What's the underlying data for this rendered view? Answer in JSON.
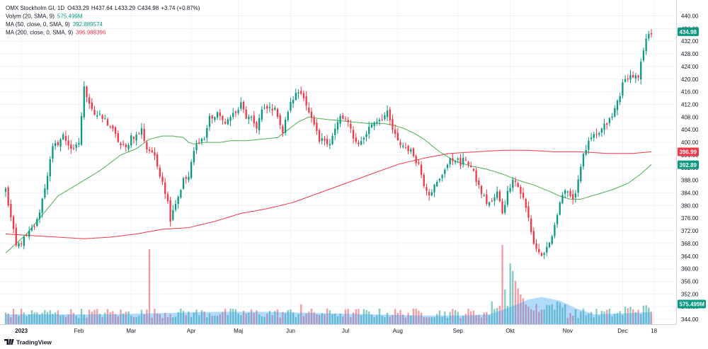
{
  "chart_data": {
    "type": "candlestick",
    "title": "OMX Stockholm GI, 1D",
    "ohlc_header": {
      "open": "O433.29",
      "high": "H437.64",
      "low": "L433.29",
      "close": "C434.98",
      "change": "+3.74 (+0.87%)"
    },
    "indicators": [
      {
        "label": "Volym (20, SMA, 9)",
        "value": "575.499M",
        "color": "#26a69a"
      },
      {
        "label": "MA (50, close, 0, SMA, 9)",
        "value": "392.889574",
        "color": "#089981"
      },
      {
        "label": "MA (200, close, 0, SMA, 9)",
        "value": "396.988396",
        "color": "#f23645"
      }
    ],
    "x_labels": [
      {
        "label": "2023",
        "bold": true,
        "i": 6
      },
      {
        "label": "Feb",
        "i": 28
      },
      {
        "label": "Mar",
        "i": 48
      },
      {
        "label": "Apr",
        "i": 71
      },
      {
        "label": "Maj",
        "i": 89
      },
      {
        "label": "Jun",
        "i": 109
      },
      {
        "label": "Jul",
        "i": 130
      },
      {
        "label": "Aug",
        "i": 150
      },
      {
        "label": "Sep",
        "i": 173
      },
      {
        "label": "Okt",
        "i": 193
      },
      {
        "label": "Nov",
        "i": 215
      },
      {
        "label": "Dec",
        "i": 236
      },
      {
        "label": "18",
        "i": 248
      }
    ],
    "y_ticks": [
      "440.00",
      "436.00",
      "432.00",
      "428.00",
      "424.00",
      "420.00",
      "416.00",
      "412.00",
      "408.00",
      "404.00",
      "400.00",
      "396.00",
      "392.00",
      "388.00",
      "384.00",
      "380.00",
      "376.00",
      "372.00",
      "368.00",
      "364.00",
      "360.00",
      "356.00",
      "352.00",
      "348.00",
      "344.00"
    ],
    "ylim": [
      342,
      441
    ],
    "price_tags": [
      {
        "value": 434.98,
        "text": "434.98",
        "color": "#089981"
      },
      {
        "value": 396.99,
        "text": "396.99",
        "color": "#f23645"
      },
      {
        "value": 392.89,
        "text": "392.89",
        "color": "#089981"
      },
      {
        "volume": 575.499,
        "text": "575.499M",
        "color": "#089981"
      }
    ],
    "anchors": [
      [
        0,
        385
      ],
      [
        4,
        367
      ],
      [
        8,
        370
      ],
      [
        12,
        375
      ],
      [
        14,
        382
      ],
      [
        18,
        398
      ],
      [
        22,
        402
      ],
      [
        26,
        397
      ],
      [
        28,
        400
      ],
      [
        30,
        417
      ],
      [
        34,
        409
      ],
      [
        38,
        407
      ],
      [
        40,
        405
      ],
      [
        44,
        399
      ],
      [
        46,
        398
      ],
      [
        48,
        402
      ],
      [
        50,
        402
      ],
      [
        52,
        404
      ],
      [
        54,
        398
      ],
      [
        56,
        397
      ],
      [
        60,
        388
      ],
      [
        62,
        381
      ],
      [
        63,
        376
      ],
      [
        64,
        379
      ],
      [
        66,
        383
      ],
      [
        68,
        388
      ],
      [
        70,
        389
      ],
      [
        72,
        397
      ],
      [
        74,
        401
      ],
      [
        76,
        401
      ],
      [
        78,
        408
      ],
      [
        80,
        408
      ],
      [
        82,
        409
      ],
      [
        84,
        405
      ],
      [
        86,
        409
      ],
      [
        88,
        409
      ],
      [
        90,
        412
      ],
      [
        92,
        408
      ],
      [
        94,
        407
      ],
      [
        96,
        405
      ],
      [
        98,
        410
      ],
      [
        102,
        411
      ],
      [
        104,
        409
      ],
      [
        106,
        403
      ],
      [
        108,
        410
      ],
      [
        110,
        414
      ],
      [
        112,
        416
      ],
      [
        114,
        415
      ],
      [
        116,
        409
      ],
      [
        118,
        405
      ],
      [
        120,
        400
      ],
      [
        122,
        401
      ],
      [
        124,
        400
      ],
      [
        126,
        404
      ],
      [
        128,
        408
      ],
      [
        130,
        407
      ],
      [
        132,
        404
      ],
      [
        134,
        400
      ],
      [
        136,
        400
      ],
      [
        140,
        406
      ],
      [
        144,
        408
      ],
      [
        146,
        409
      ],
      [
        148,
        404
      ],
      [
        150,
        400
      ],
      [
        152,
        399
      ],
      [
        154,
        398
      ],
      [
        156,
        396
      ],
      [
        158,
        393
      ],
      [
        160,
        387
      ],
      [
        162,
        384
      ],
      [
        164,
        386
      ],
      [
        166,
        388
      ],
      [
        168,
        392
      ],
      [
        170,
        394
      ],
      [
        172,
        395
      ],
      [
        174,
        393
      ],
      [
        176,
        395
      ],
      [
        178,
        392
      ],
      [
        180,
        388
      ],
      [
        182,
        384
      ],
      [
        184,
        381
      ],
      [
        186,
        381
      ],
      [
        188,
        384
      ],
      [
        190,
        378
      ],
      [
        192,
        384
      ],
      [
        194,
        389
      ],
      [
        196,
        386
      ],
      [
        198,
        382
      ],
      [
        200,
        376
      ],
      [
        202,
        368
      ],
      [
        204,
        365
      ],
      [
        206,
        364
      ],
      [
        208,
        368
      ],
      [
        210,
        373
      ],
      [
        212,
        382
      ],
      [
        214,
        385
      ],
      [
        216,
        382
      ],
      [
        218,
        384
      ],
      [
        220,
        393
      ],
      [
        222,
        398
      ],
      [
        224,
        401
      ],
      [
        226,
        402
      ],
      [
        228,
        404
      ],
      [
        230,
        406
      ],
      [
        232,
        408
      ],
      [
        234,
        413
      ],
      [
        236,
        418
      ],
      [
        238,
        421
      ],
      [
        240,
        421
      ],
      [
        242,
        420
      ],
      [
        244,
        429
      ],
      [
        246,
        435
      ]
    ],
    "volume_extremes": [
      [
        55,
        60.5
      ],
      [
        113,
        16
      ],
      [
        190,
        64
      ],
      [
        191,
        28
      ],
      [
        193,
        49
      ],
      [
        194,
        43
      ],
      [
        195,
        35
      ],
      [
        196,
        29
      ],
      [
        197,
        24
      ],
      [
        198,
        21
      ],
      [
        199,
        16
      ],
      [
        200,
        14
      ],
      [
        201,
        12
      ],
      [
        202,
        11
      ],
      [
        204,
        10
      ]
    ],
    "volume_avg": [
      [
        0,
        8
      ],
      [
        40,
        8
      ],
      [
        60,
        9
      ],
      [
        80,
        10
      ],
      [
        100,
        10
      ],
      [
        120,
        9
      ],
      [
        140,
        8
      ],
      [
        160,
        7
      ],
      [
        175,
        7
      ],
      [
        185,
        8
      ],
      [
        192,
        13
      ],
      [
        200,
        20
      ],
      [
        205,
        22
      ],
      [
        212,
        19
      ],
      [
        218,
        13
      ],
      [
        225,
        8
      ],
      [
        240,
        9
      ],
      [
        247,
        10
      ]
    ],
    "ma50": [
      [
        0,
        365
      ],
      [
        8,
        371
      ],
      [
        14,
        377
      ],
      [
        20,
        383
      ],
      [
        26,
        386
      ],
      [
        30,
        388
      ],
      [
        36,
        391
      ],
      [
        44,
        396
      ],
      [
        50,
        398
      ],
      [
        55,
        401
      ],
      [
        60,
        402
      ],
      [
        64,
        402
      ],
      [
        68,
        401.5
      ],
      [
        70,
        400
      ],
      [
        72,
        399.5
      ],
      [
        76,
        400
      ],
      [
        82,
        400
      ],
      [
        86,
        400.5
      ],
      [
        92,
        400.5
      ],
      [
        98,
        401
      ],
      [
        104,
        401.5
      ],
      [
        108,
        404
      ],
      [
        112,
        406.5
      ],
      [
        116,
        408
      ],
      [
        120,
        407.5
      ],
      [
        126,
        407
      ],
      [
        132,
        406.5
      ],
      [
        138,
        406
      ],
      [
        144,
        406
      ],
      [
        148,
        405.5
      ],
      [
        152,
        404.5
      ],
      [
        156,
        403
      ],
      [
        160,
        401
      ],
      [
        166,
        397
      ],
      [
        172,
        394
      ],
      [
        178,
        392.5
      ],
      [
        184,
        391.5
      ],
      [
        190,
        390
      ],
      [
        196,
        388
      ],
      [
        202,
        386.5
      ],
      [
        208,
        384.5
      ],
      [
        212,
        383
      ],
      [
        216,
        382
      ],
      [
        220,
        382
      ],
      [
        226,
        383.5
      ],
      [
        232,
        385
      ],
      [
        238,
        387
      ],
      [
        243,
        390
      ],
      [
        247,
        393
      ]
    ],
    "ma200": [
      [
        0,
        371
      ],
      [
        10,
        370.5
      ],
      [
        20,
        370
      ],
      [
        30,
        369.5
      ],
      [
        40,
        370
      ],
      [
        50,
        371
      ],
      [
        60,
        372.5
      ],
      [
        70,
        373
      ],
      [
        80,
        375
      ],
      [
        90,
        377.5
      ],
      [
        100,
        379
      ],
      [
        110,
        381
      ],
      [
        120,
        384
      ],
      [
        130,
        387
      ],
      [
        140,
        390
      ],
      [
        150,
        393
      ],
      [
        160,
        395
      ],
      [
        170,
        396.5
      ],
      [
        180,
        397
      ],
      [
        190,
        397.5
      ],
      [
        200,
        397.5
      ],
      [
        210,
        397
      ],
      [
        220,
        397
      ],
      [
        230,
        396.5
      ],
      [
        240,
        396.5
      ],
      [
        247,
        397
      ]
    ]
  }
}
